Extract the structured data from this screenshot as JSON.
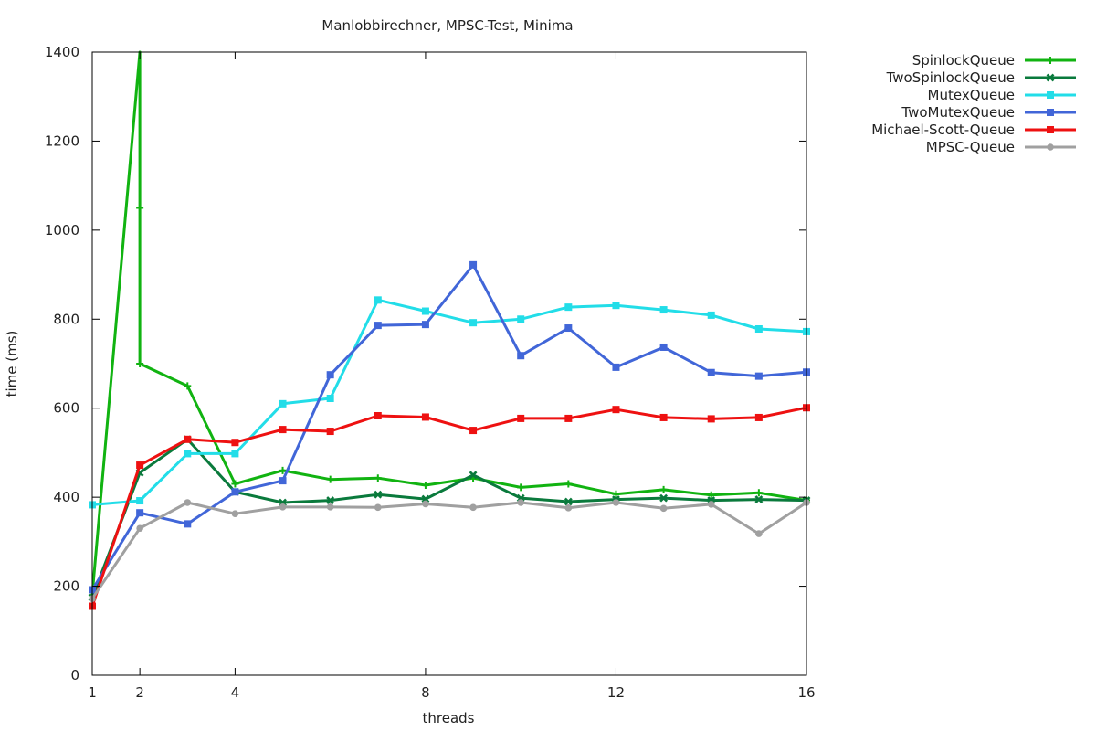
{
  "chart_data": {
    "type": "line",
    "title": "Manlobbirechner, MPSC-Test, Minima",
    "xlabel": "threads",
    "ylabel": "time (ms)",
    "xlim": [
      1,
      16
    ],
    "ylim": [
      0,
      1400
    ],
    "xticks": [
      1,
      2,
      4,
      8,
      12,
      16
    ],
    "yticks": [
      0,
      200,
      400,
      600,
      800,
      1000,
      1200,
      1400
    ],
    "grid": false,
    "legend_position": "outside-top-right",
    "x": [
      1,
      2,
      3,
      4,
      5,
      6,
      7,
      8,
      9,
      10,
      11,
      12,
      13,
      14,
      15,
      16
    ],
    "series": [
      {
        "name": "SpinlockQueue",
        "color": "#11b311",
        "marker": "plus",
        "points": [
          [
            1,
            180
          ],
          [
            2,
            1400
          ],
          [
            2,
            1050
          ],
          [
            2,
            700
          ],
          [
            3,
            650
          ],
          [
            4,
            430
          ],
          [
            5,
            460
          ],
          [
            6,
            440
          ],
          [
            7,
            443
          ],
          [
            8,
            427
          ],
          [
            9,
            443
          ],
          [
            10,
            422
          ],
          [
            11,
            430
          ],
          [
            12,
            407
          ],
          [
            13,
            417
          ],
          [
            14,
            405
          ],
          [
            15,
            410
          ],
          [
            16,
            393
          ]
        ]
      },
      {
        "name": "TwoSpinlockQueue",
        "color": "#0a7a3c",
        "marker": "x",
        "points": [
          [
            1,
            175
          ],
          [
            2,
            455
          ],
          [
            3,
            530
          ],
          [
            4,
            412
          ],
          [
            5,
            388
          ],
          [
            6,
            393
          ],
          [
            7,
            406
          ],
          [
            8,
            396
          ],
          [
            9,
            450
          ],
          [
            10,
            398
          ],
          [
            11,
            390
          ],
          [
            12,
            395
          ],
          [
            13,
            398
          ],
          [
            14,
            393
          ],
          [
            15,
            395
          ],
          [
            16,
            393
          ]
        ]
      },
      {
        "name": "MutexQueue",
        "color": "#22dde8",
        "marker": "square",
        "points": [
          [
            1,
            383
          ],
          [
            2,
            392
          ],
          [
            3,
            498
          ],
          [
            4,
            498
          ],
          [
            5,
            610
          ],
          [
            6,
            622
          ],
          [
            7,
            843
          ],
          [
            8,
            818
          ],
          [
            9,
            792
          ],
          [
            10,
            800
          ],
          [
            11,
            827
          ],
          [
            12,
            831
          ],
          [
            13,
            821
          ],
          [
            14,
            809
          ],
          [
            15,
            778
          ],
          [
            16,
            772
          ]
        ]
      },
      {
        "name": "TwoMutexQueue",
        "color": "#4166d8",
        "marker": "square",
        "points": [
          [
            1,
            192
          ],
          [
            2,
            365
          ],
          [
            3,
            340
          ],
          [
            4,
            412
          ],
          [
            5,
            437
          ],
          [
            6,
            675
          ],
          [
            7,
            786
          ],
          [
            8,
            788
          ],
          [
            9,
            922
          ],
          [
            10,
            718
          ],
          [
            11,
            780
          ],
          [
            12,
            692
          ],
          [
            13,
            737
          ],
          [
            14,
            680
          ],
          [
            15,
            672
          ],
          [
            16,
            681
          ]
        ]
      },
      {
        "name": "Michael-Scott-Queue",
        "color": "#ee1111",
        "marker": "square",
        "points": [
          [
            1,
            155
          ],
          [
            2,
            472
          ],
          [
            3,
            530
          ],
          [
            4,
            523
          ],
          [
            5,
            552
          ],
          [
            6,
            548
          ],
          [
            7,
            583
          ],
          [
            8,
            580
          ],
          [
            9,
            550
          ],
          [
            10,
            577
          ],
          [
            11,
            577
          ],
          [
            12,
            597
          ],
          [
            13,
            579
          ],
          [
            14,
            576
          ],
          [
            15,
            579
          ],
          [
            16,
            601
          ]
        ]
      },
      {
        "name": "MPSC-Queue",
        "color": "#a0a0a0",
        "marker": "circle",
        "points": [
          [
            1,
            172
          ],
          [
            2,
            330
          ],
          [
            3,
            388
          ],
          [
            4,
            363
          ],
          [
            5,
            378
          ],
          [
            6,
            378
          ],
          [
            7,
            377
          ],
          [
            8,
            385
          ],
          [
            9,
            377
          ],
          [
            10,
            388
          ],
          [
            11,
            376
          ],
          [
            12,
            388
          ],
          [
            13,
            375
          ],
          [
            14,
            384
          ],
          [
            15,
            318
          ],
          [
            16,
            388
          ]
        ]
      }
    ]
  }
}
